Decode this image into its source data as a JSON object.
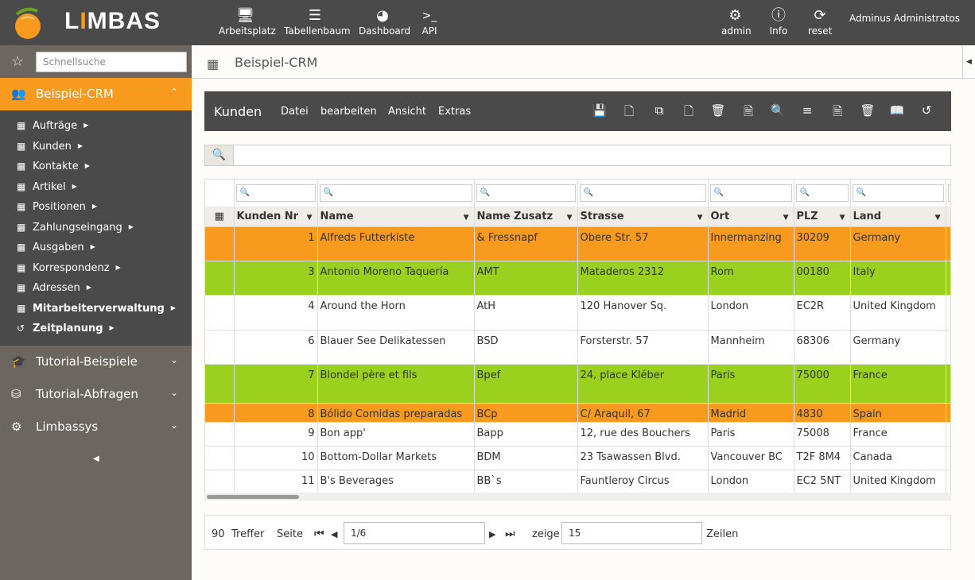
{
  "app": {
    "logo": "LIMBAS",
    "user": "Adminus Administratos"
  },
  "topnav": {
    "left": [
      {
        "label": "Arbeitsplatz",
        "icon": "monitor-icon"
      },
      {
        "label": "Tabellenbaum",
        "icon": "list-icon"
      },
      {
        "label": "Dashboard",
        "icon": "dashboard-icon"
      },
      {
        "label": "API",
        "icon": "terminal-icon"
      }
    ],
    "right": [
      {
        "label": "admin",
        "icon": "gear-icon"
      },
      {
        "label": "Info",
        "icon": "info-icon"
      },
      {
        "label": "reset",
        "icon": "refresh-icon"
      }
    ]
  },
  "sidebar": {
    "search_placeholder": "Schnellsuche",
    "active_group": "Beispiel-CRM",
    "items": [
      {
        "label": "Aufträge",
        "bold": false
      },
      {
        "label": "Kunden",
        "bold": false
      },
      {
        "label": "Kontakte",
        "bold": false
      },
      {
        "label": "Artikel",
        "bold": false
      },
      {
        "label": "Positionen",
        "bold": false
      },
      {
        "label": "Zahlungseingang",
        "bold": false
      },
      {
        "label": "Ausgaben",
        "bold": false
      },
      {
        "label": "Korrespondenz",
        "bold": false
      },
      {
        "label": "Adressen",
        "bold": false
      },
      {
        "label": "Mitarbeiterverwaltung",
        "bold": true
      },
      {
        "label": "Zeitplanung",
        "bold": true
      }
    ],
    "groups": [
      "Tutorial-Beispiele",
      "Tutorial-Abfragen",
      "Limbassys"
    ]
  },
  "breadcrumb": {
    "title": "Beispiel-CRM"
  },
  "toolbar": {
    "title": "Kunden",
    "menus": [
      "Datei",
      "bearbeiten",
      "Ansicht",
      "Extras"
    ]
  },
  "table": {
    "columns": [
      "Kunden Nr",
      "Name",
      "Name Zusatz",
      "Strasse",
      "Ort",
      "PLZ",
      "Land"
    ],
    "rows": [
      {
        "nr": "1",
        "name": "Alfreds Futterkiste",
        "zusatz": "& Fressnapf",
        "strasse": "Obere Str. 57",
        "ort": "Innermanzing",
        "plz": "30209",
        "land": "Germany",
        "color": "orange"
      },
      {
        "nr": "3",
        "name": "Antonio Moreno Taquería",
        "zusatz": "AMT",
        "strasse": "Mataderos 2312",
        "ort": "Rom",
        "plz": "00180",
        "land": "Italy",
        "color": "green"
      },
      {
        "nr": "4",
        "name": "Around the Horn",
        "zusatz": "AtH",
        "strasse": "120 Hanover Sq.",
        "ort": "London",
        "plz": "EC2R",
        "land": "United Kingdom",
        "color": "white"
      },
      {
        "nr": "6",
        "name": "Blauer See Delikatessen",
        "zusatz": "BSD",
        "strasse": "Forsterstr. 57",
        "ort": "Mannheim",
        "plz": "68306",
        "land": "Germany",
        "color": "white"
      },
      {
        "nr": "7",
        "name": "Blondel père et fils",
        "zusatz": "Bpef",
        "strasse": "24, place Kléber",
        "ort": "Paris",
        "plz": "75000",
        "land": "France",
        "color": "green"
      },
      {
        "nr": "8",
        "name": "Bólido Comidas preparadas",
        "zusatz": "BCp",
        "strasse": "C/ Araquil, 67",
        "ort": "Madrid",
        "plz": "4830",
        "land": "Spain",
        "color": "orange"
      },
      {
        "nr": "9",
        "name": "Bon app'",
        "zusatz": "Bapp",
        "strasse": "12, rue des Bouchers",
        "ort": "Paris",
        "plz": "75008",
        "land": "France",
        "color": "white"
      },
      {
        "nr": "10",
        "name": "Bottom-Dollar Markets",
        "zusatz": "BDM",
        "strasse": "23 Tsawassen Blvd.",
        "ort": "Vancouver BC",
        "plz": "T2F 8M4",
        "land": "Canada",
        "color": "white"
      },
      {
        "nr": "11",
        "name": "B's Beverages",
        "zusatz": "BB`s",
        "strasse": "Fauntleroy Circus",
        "ort": "London",
        "plz": "EC2 5NT",
        "land": "United Kingdom",
        "color": "white"
      }
    ]
  },
  "footer": {
    "count": "90",
    "count_label": "Treffer",
    "page_label": "Seite",
    "page_value": "1/6",
    "show_label": "zeige",
    "rows_value": "15",
    "rows_label": "Zeilen"
  },
  "colors": {
    "accent": "#f79a1e",
    "green": "#99d11e",
    "dark": "#4a4a4a",
    "sidebar": "#6b6660"
  }
}
